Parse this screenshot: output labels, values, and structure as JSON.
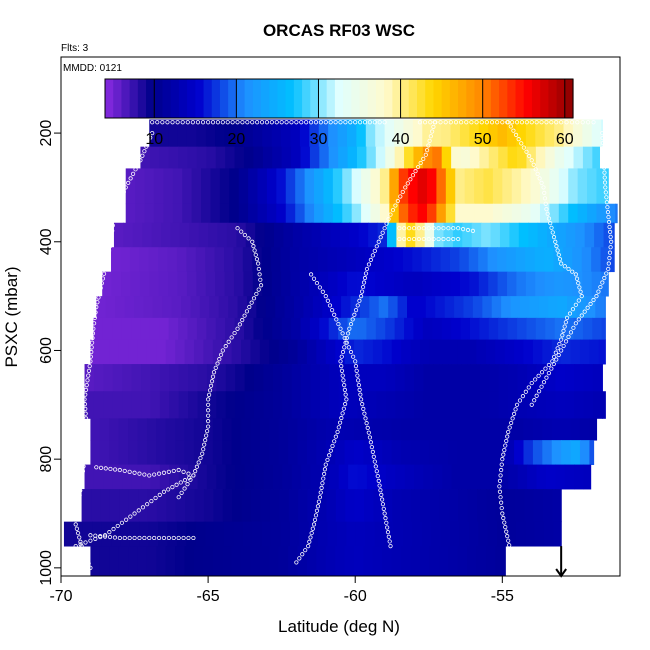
{
  "chart_data": {
    "type": "heatmap",
    "title": "ORCAS RF03 WSC",
    "corner_label": "Flts: 3",
    "inner_label": "MMDD: 0121",
    "xlabel": "Latitude (deg N)",
    "ylabel": "PSXC (mbar)",
    "xlim": [
      -70,
      -51
    ],
    "ylim": [
      1015,
      60
    ],
    "y_reversed": true,
    "grid": false,
    "x_ticks": [
      -70,
      -65,
      -60,
      -55
    ],
    "x_tick_labels": [
      "-70",
      "-65",
      "-60",
      "-55"
    ],
    "y_ticks": [
      200,
      400,
      600,
      800,
      1000
    ],
    "y_tick_labels": [
      "200",
      "400",
      "600",
      "800",
      "1000"
    ],
    "colorbar": {
      "min": 4,
      "max": 61,
      "ticks": [
        10,
        20,
        30,
        40,
        50,
        60
      ],
      "tick_labels": [
        "10",
        "20",
        "30",
        "40",
        "50",
        "60"
      ],
      "palette": [
        "#8a2be2",
        "#00008b",
        "#0000cd",
        "#1e90ff",
        "#00bfff",
        "#e0ffff",
        "#fffacd",
        "#ffd700",
        "#ff8c00",
        "#ff0000",
        "#8b0000"
      ]
    },
    "bands": [
      {
        "p_top": 175,
        "p_bot": 225,
        "lat_min": -67.0,
        "lat_max": -51.6,
        "lat_nodes": [
          -67,
          -65.5,
          -64,
          -62,
          -61,
          -60,
          -59.5,
          -58.5,
          -57.5,
          -57,
          -56,
          -55,
          -53,
          -51.6
        ],
        "values": [
          9,
          9,
          10,
          14,
          20,
          25,
          30,
          35,
          40,
          40,
          43,
          46,
          40,
          32
        ]
      },
      {
        "p_top": 225,
        "p_bot": 265,
        "lat_min": -67.3,
        "lat_max": -51.7,
        "lat_nodes": [
          -67.3,
          -65,
          -63.5,
          -62,
          -61,
          -60,
          -59,
          -58,
          -57.3,
          -56.5,
          -55.5,
          -54.5,
          -53,
          -51.7
        ],
        "values": [
          7,
          8,
          10,
          14,
          20,
          26,
          33,
          45,
          52,
          36,
          40,
          44,
          34,
          28
        ]
      },
      {
        "p_top": 265,
        "p_bot": 330,
        "lat_min": -67.8,
        "lat_max": -51.4,
        "lat_nodes": [
          -67.8,
          -66,
          -64,
          -62.5,
          -61,
          -60,
          -59,
          -58.5,
          -57.8,
          -57.3,
          -56.5,
          -55.5,
          -54,
          -52.5,
          -51.4
        ],
        "values": [
          6,
          7,
          10,
          16,
          25,
          32,
          40,
          52,
          57,
          55,
          40,
          42,
          38,
          30,
          28
        ]
      },
      {
        "p_top": 330,
        "p_bot": 365,
        "lat_min": -67.8,
        "lat_max": -51.1,
        "lat_nodes": [
          -67.8,
          -66,
          -64,
          -62.5,
          -61,
          -60,
          -59,
          -58.5,
          -57.8,
          -57.3,
          -56.5,
          -55.5,
          -54,
          -52.5,
          -51.1
        ],
        "values": [
          6,
          7,
          10,
          15,
          24,
          30,
          38,
          50,
          56,
          52,
          38,
          38,
          34,
          26,
          20
        ]
      },
      {
        "p_top": 365,
        "p_bot": 410,
        "lat_min": -68.2,
        "lat_max": -51.2,
        "lat_nodes": [
          -68.2,
          -66,
          -64,
          -62,
          -60,
          -59,
          -58.3,
          -57.8,
          -57.2,
          -56.5,
          -55.5,
          -54,
          -52.5,
          -51.2
        ],
        "values": [
          6,
          7,
          8,
          12,
          15,
          17,
          45,
          40,
          30,
          28,
          30,
          26,
          22,
          18
        ]
      },
      {
        "p_top": 410,
        "p_bot": 455,
        "lat_min": -68.3,
        "lat_max": -51.2,
        "lat_nodes": [
          -68.3,
          -66,
          -64,
          -62,
          -60,
          -58,
          -56.5,
          -55,
          -53.5,
          -52.5,
          -51.2
        ],
        "values": [
          5,
          6,
          8,
          12,
          14,
          16,
          18,
          22,
          25,
          22,
          18
        ]
      },
      {
        "p_top": 455,
        "p_bot": 500,
        "lat_min": -68.6,
        "lat_max": -51.4,
        "lat_nodes": [
          -68.6,
          -66,
          -64,
          -62,
          -60,
          -58,
          -56,
          -54.5,
          -53,
          -51.4
        ],
        "values": [
          5,
          6,
          8,
          12,
          16,
          14,
          16,
          20,
          22,
          20
        ]
      },
      {
        "p_top": 500,
        "p_bot": 540,
        "lat_min": -68.8,
        "lat_max": -51.5,
        "lat_nodes": [
          -68.8,
          -66,
          -64,
          -62,
          -60,
          -59,
          -58,
          -56,
          -54.5,
          -53,
          -51.5
        ],
        "values": [
          5,
          6,
          8,
          12,
          17,
          20,
          15,
          18,
          22,
          24,
          20
        ]
      },
      {
        "p_top": 540,
        "p_bot": 580,
        "lat_min": -68.9,
        "lat_max": -51.5,
        "lat_nodes": [
          -68.9,
          -66.5,
          -64,
          -62,
          -60,
          -59,
          -57.5,
          -56,
          -54.5,
          -53,
          -51.5
        ],
        "values": [
          5,
          5,
          8,
          12,
          20,
          18,
          14,
          16,
          18,
          20,
          18
        ]
      },
      {
        "p_top": 580,
        "p_bot": 625,
        "lat_min": -69.0,
        "lat_max": -51.5,
        "lat_nodes": [
          -69,
          -66.5,
          -64,
          -62,
          -60,
          -59,
          -57.5,
          -56,
          -54.5,
          -53,
          -51.5
        ],
        "values": [
          5,
          5,
          8,
          11,
          17,
          16,
          13,
          13,
          15,
          17,
          16
        ]
      },
      {
        "p_top": 625,
        "p_bot": 675,
        "lat_min": -69.2,
        "lat_max": -51.6,
        "lat_nodes": [
          -69.2,
          -67,
          -65,
          -62.5,
          -60.5,
          -59,
          -57.5,
          -56,
          -54.5,
          -53,
          -51.6
        ],
        "values": [
          6,
          7,
          8,
          11,
          14,
          14,
          12,
          12,
          13,
          15,
          14
        ]
      },
      {
        "p_top": 675,
        "p_bot": 725,
        "lat_min": -69.2,
        "lat_max": -51.5,
        "lat_nodes": [
          -69.2,
          -67,
          -65,
          -62.5,
          -60.5,
          -59,
          -57.5,
          -56,
          -54.5,
          -53,
          -51.5
        ],
        "values": [
          7,
          7,
          9,
          11,
          14,
          13,
          12,
          12,
          13,
          14,
          13
        ]
      },
      {
        "p_top": 725,
        "p_bot": 765,
        "lat_min": -69.0,
        "lat_max": -51.8,
        "lat_nodes": [
          -69,
          -67,
          -65,
          -62.5,
          -60.5,
          -58,
          -56,
          -54.5,
          -53,
          -51.8
        ],
        "values": [
          7,
          8,
          9,
          11,
          13,
          12,
          12,
          12,
          13,
          12
        ]
      },
      {
        "p_top": 765,
        "p_bot": 810,
        "lat_min": -69.0,
        "lat_max": -51.9,
        "lat_nodes": [
          -69,
          -67,
          -65,
          -62.5,
          -61,
          -60,
          -58.5,
          -56.5,
          -55,
          -54,
          -53,
          -52.5,
          -51.9
        ],
        "values": [
          7,
          8,
          9,
          11,
          13,
          15,
          13,
          12,
          12,
          18,
          22,
          24,
          18
        ]
      },
      {
        "p_top": 810,
        "p_bot": 855,
        "lat_min": -69.2,
        "lat_max": -52.0,
        "lat_nodes": [
          -69.2,
          -67,
          -65,
          -62.5,
          -61,
          -60,
          -58.5,
          -56.5,
          -55,
          -53.5,
          -52
        ],
        "values": [
          7,
          7,
          9,
          11,
          13,
          16,
          14,
          12,
          12,
          15,
          14
        ]
      },
      {
        "p_top": 855,
        "p_bot": 915,
        "lat_min": -69.3,
        "lat_max": -53.0,
        "lat_nodes": [
          -69.3,
          -67,
          -65,
          -62.5,
          -61,
          -60,
          -58.5,
          -56.5,
          -55,
          -53
        ],
        "values": [
          8,
          8,
          9,
          11,
          13,
          15,
          13,
          12,
          11,
          12
        ]
      },
      {
        "p_top": 915,
        "p_bot": 960,
        "lat_min": -69.9,
        "lat_max": -53.0,
        "lat_nodes": [
          -69.9,
          -67,
          -65,
          -62.5,
          -61,
          -60,
          -58.5,
          -56.5,
          -55,
          -53
        ],
        "values": [
          9,
          9,
          10,
          11,
          13,
          14,
          13,
          12,
          11,
          12
        ]
      },
      {
        "p_top": 960,
        "p_bot": 1015,
        "lat_min": -69.0,
        "lat_max": -54.9,
        "lat_nodes": [
          -69,
          -67,
          -65,
          -62.5,
          -61,
          -60,
          -58.5,
          -56.5,
          -54.9
        ],
        "values": [
          9,
          9,
          10,
          11,
          13,
          14,
          13,
          12,
          11
        ]
      }
    ],
    "flight_tracks": [
      {
        "name": "track-1",
        "points": [
          [
            -66.9,
            200
          ],
          [
            -67.3,
            250
          ],
          [
            -67.8,
            300
          ],
          [
            -68.2,
            350
          ],
          [
            -68.3,
            400
          ],
          [
            -68.5,
            450
          ],
          [
            -68.8,
            520
          ],
          [
            -68.9,
            560
          ],
          [
            -69.0,
            620
          ],
          [
            -69.2,
            690
          ],
          [
            -69.1,
            760
          ],
          [
            -69.3,
            840
          ],
          [
            -69.5,
            920
          ],
          [
            -69.3,
            960
          ],
          [
            -69.0,
            1000
          ]
        ]
      },
      {
        "name": "track-2",
        "points": [
          [
            -66.9,
            180
          ],
          [
            -65.0,
            180
          ],
          [
            -62.0,
            180
          ],
          [
            -60.0,
            180
          ],
          [
            -59.0,
            180
          ]
        ]
      },
      {
        "name": "track-3",
        "points": [
          [
            -57.8,
            180
          ],
          [
            -55.0,
            180
          ],
          [
            -53.0,
            180
          ],
          [
            -51.9,
            180
          ]
        ]
      },
      {
        "name": "track-4",
        "points": [
          [
            -64.0,
            375
          ],
          [
            -63.5,
            400
          ],
          [
            -63.3,
            440
          ],
          [
            -63.2,
            480
          ],
          [
            -63.6,
            520
          ],
          [
            -64.0,
            560
          ],
          [
            -64.5,
            600
          ],
          [
            -64.8,
            640
          ],
          [
            -65.0,
            690
          ],
          [
            -65.0,
            740
          ],
          [
            -65.2,
            790
          ],
          [
            -65.5,
            830
          ],
          [
            -66.0,
            870
          ]
        ]
      },
      {
        "name": "track-5",
        "points": [
          [
            -57.3,
            180
          ],
          [
            -57.6,
            240
          ],
          [
            -58.3,
            300
          ],
          [
            -58.8,
            350
          ],
          [
            -59.2,
            400
          ],
          [
            -59.6,
            450
          ],
          [
            -59.8,
            500
          ],
          [
            -60.2,
            560
          ],
          [
            -60.5,
            620
          ],
          [
            -60.3,
            690
          ],
          [
            -60.6,
            750
          ],
          [
            -61.0,
            810
          ],
          [
            -61.2,
            870
          ],
          [
            -61.4,
            920
          ],
          [
            -61.6,
            960
          ],
          [
            -62.0,
            990
          ]
        ]
      },
      {
        "name": "track-6",
        "points": [
          [
            -58.5,
            375
          ],
          [
            -57.5,
            375
          ],
          [
            -56.5,
            375
          ],
          [
            -56.0,
            380
          ]
        ]
      },
      {
        "name": "track-7",
        "points": [
          [
            -58.5,
            395
          ],
          [
            -57.5,
            395
          ],
          [
            -56.5,
            395
          ]
        ]
      },
      {
        "name": "track-8",
        "points": [
          [
            -54.8,
            180
          ],
          [
            -54.0,
            250
          ],
          [
            -53.6,
            300
          ],
          [
            -53.5,
            340
          ],
          [
            -53.2,
            400
          ],
          [
            -53.0,
            440
          ],
          [
            -52.5,
            460
          ],
          [
            -52.3,
            500
          ],
          [
            -52.8,
            540
          ],
          [
            -53.0,
            580
          ],
          [
            -53.3,
            620
          ],
          [
            -54.0,
            660
          ],
          [
            -54.5,
            700
          ],
          [
            -54.8,
            750
          ],
          [
            -55.0,
            800
          ],
          [
            -55.1,
            850
          ],
          [
            -55.0,
            900
          ],
          [
            -54.8,
            950
          ],
          [
            -54.6,
            1000
          ]
        ]
      },
      {
        "name": "track-9",
        "points": [
          [
            -61.5,
            460
          ],
          [
            -61.0,
            500
          ],
          [
            -60.5,
            560
          ],
          [
            -60.0,
            620
          ],
          [
            -59.8,
            690
          ],
          [
            -59.5,
            760
          ],
          [
            -59.2,
            840
          ],
          [
            -59.0,
            900
          ],
          [
            -58.8,
            960
          ]
        ]
      },
      {
        "name": "track-10",
        "points": [
          [
            -68.8,
            815
          ],
          [
            -68.0,
            820
          ],
          [
            -67.0,
            830
          ],
          [
            -66.0,
            820
          ],
          [
            -65.5,
            830
          ],
          [
            -66.5,
            860
          ],
          [
            -67.5,
            900
          ],
          [
            -68.5,
            940
          ],
          [
            -69.5,
            960
          ]
        ]
      },
      {
        "name": "track-11",
        "points": [
          [
            -69.0,
            940
          ],
          [
            -68.0,
            945
          ],
          [
            -67.0,
            945
          ],
          [
            -66.0,
            945
          ],
          [
            -65.5,
            945
          ]
        ]
      },
      {
        "name": "track-12",
        "points": [
          [
            -51.6,
            200
          ],
          [
            -51.5,
            300
          ],
          [
            -51.3,
            400
          ],
          [
            -51.4,
            450
          ],
          [
            -51.8,
            500
          ],
          [
            -52.5,
            550
          ],
          [
            -53.0,
            600
          ],
          [
            -53.5,
            650
          ],
          [
            -54.0,
            700
          ]
        ]
      }
    ],
    "annotation_arrow": {
      "lat": -53.0,
      "p_from": 960,
      "p_to": 1015
    }
  }
}
